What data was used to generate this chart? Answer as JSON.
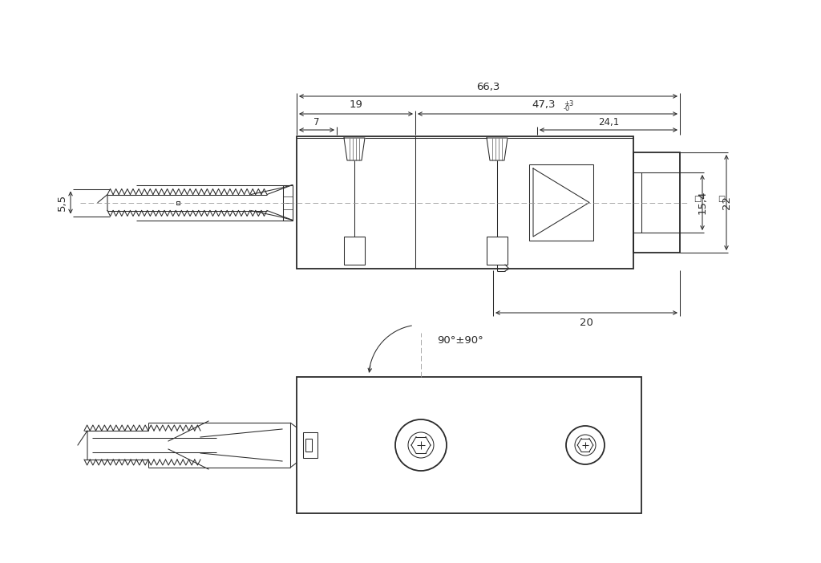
{
  "bg_color": "#ffffff",
  "line_color": "#2a2a2a",
  "dim_color": "#2a2a2a",
  "lw_main": 1.3,
  "lw_thin": 0.75,
  "lw_dim": 0.75,
  "annotations": {
    "dim_663": "66,3",
    "dim_19": "19",
    "dim_47": "47,3",
    "dim_7": "7",
    "dim_241": "24,1",
    "dim_55": "5,5",
    "dim_154": "15,4",
    "dim_22": "22",
    "dim_20": "20",
    "dim_angle": "90°±90°"
  },
  "fig_width": 10.24,
  "fig_height": 7.02
}
